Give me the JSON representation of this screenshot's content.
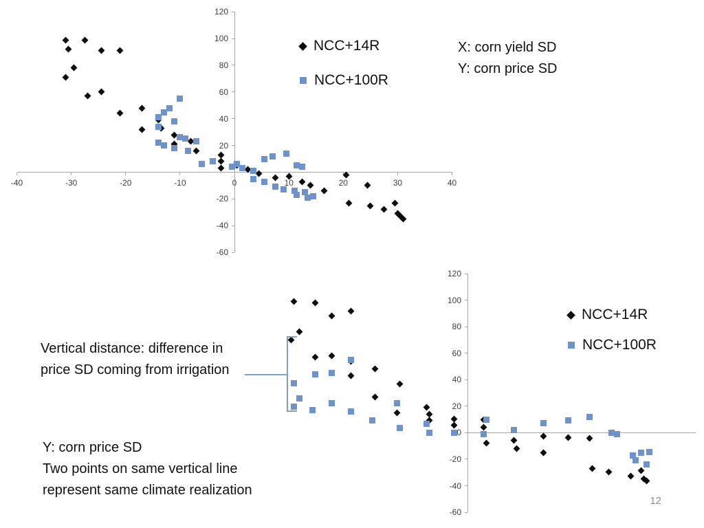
{
  "page": {
    "page_number": "12"
  },
  "colors": {
    "series_ncc14r": "#0d0d0d",
    "series_ncc100r": "#6e92ca",
    "axis": "#a6a6a6",
    "bracket": "#7f9fc4"
  },
  "chart_data": [
    {
      "type": "scatter",
      "position": "top",
      "title": "",
      "xlabel": "",
      "ylabel": "",
      "x_axis": {
        "min": -40,
        "max": 40,
        "ticks": [
          -40,
          -30,
          -20,
          -10,
          0,
          10,
          20,
          30,
          40
        ]
      },
      "y_axis": {
        "min": -60,
        "max": 120,
        "ticks": [
          120,
          100,
          80,
          60,
          40,
          20,
          -20,
          -40,
          -60
        ]
      },
      "grid": false,
      "legend_position": "top-center",
      "annotations": {
        "note": [
          "X: corn yield SD",
          "Y: corn price SD"
        ]
      },
      "series": [
        {
          "name": "NCC+14R",
          "marker": "diamond",
          "color": "#0d0d0d",
          "points": [
            [
              -31,
              99
            ],
            [
              -27.5,
              99
            ],
            [
              -30.5,
              92
            ],
            [
              -24.5,
              91
            ],
            [
              -21,
              91
            ],
            [
              -29.5,
              78
            ],
            [
              -31,
              71
            ],
            [
              -27,
              57
            ],
            [
              -24.5,
              60
            ],
            [
              -21,
              44
            ],
            [
              -17,
              48
            ],
            [
              -17,
              32
            ],
            [
              -14,
              39
            ],
            [
              -13.5,
              33
            ],
            [
              -11,
              28
            ],
            [
              -11,
              21
            ],
            [
              -8,
              23
            ],
            [
              -7,
              16
            ],
            [
              -2.5,
              13
            ],
            [
              -2.5,
              8
            ],
            [
              -2.5,
              3
            ],
            [
              0.5,
              5
            ],
            [
              2.5,
              2
            ],
            [
              4.5,
              -1
            ],
            [
              7.5,
              -4
            ],
            [
              10,
              -3
            ],
            [
              12.5,
              -7
            ],
            [
              14,
              -10
            ],
            [
              16.5,
              -14
            ],
            [
              20.5,
              -2
            ],
            [
              21,
              -23
            ],
            [
              24.5,
              -10
            ],
            [
              25,
              -25
            ],
            [
              27.5,
              -28
            ],
            [
              29.5,
              -23
            ],
            [
              30,
              -31
            ],
            [
              30.5,
              -33
            ],
            [
              31,
              -35
            ]
          ]
        },
        {
          "name": "NCC+100R",
          "marker": "square",
          "color": "#6e92ca",
          "points": [
            [
              -10,
              55
            ],
            [
              -12,
              48
            ],
            [
              -13,
              45
            ],
            [
              -14,
              41
            ],
            [
              -11,
              38
            ],
            [
              -14,
              34
            ],
            [
              -10,
              26
            ],
            [
              -14,
              22
            ],
            [
              -13,
              20
            ],
            [
              -11,
              18
            ],
            [
              -9,
              25
            ],
            [
              -7,
              23
            ],
            [
              -8.5,
              16
            ],
            [
              -6,
              6
            ],
            [
              -4,
              8
            ],
            [
              -0.5,
              4
            ],
            [
              0.5,
              6
            ],
            [
              1.5,
              3
            ],
            [
              3.5,
              1
            ],
            [
              5.5,
              10
            ],
            [
              7,
              12
            ],
            [
              9.5,
              14
            ],
            [
              11.5,
              5
            ],
            [
              12.5,
              4
            ],
            [
              3.5,
              -5
            ],
            [
              5.5,
              -7
            ],
            [
              7.5,
              -11
            ],
            [
              9,
              -13
            ],
            [
              11,
              -14
            ],
            [
              11.5,
              -17
            ],
            [
              13,
              -15
            ],
            [
              13.5,
              -19
            ],
            [
              14.5,
              -18
            ]
          ]
        }
      ]
    },
    {
      "type": "scatter",
      "position": "bottom-right",
      "title": "",
      "xlabel": "",
      "ylabel": "",
      "x_axis": {
        "min": -40,
        "max": 42,
        "ticks": []
      },
      "y_axis": {
        "min": -60,
        "max": 120,
        "ticks": [
          120,
          100,
          80,
          60,
          40,
          20,
          0,
          -20,
          -40,
          -60
        ]
      },
      "grid": false,
      "legend_position": "right",
      "annotations": {
        "left_note": "Vertical distance: difference in price SD coming from irrigation",
        "bottom_note": [
          "Y: corn price SD",
          "Two points on same vertical line",
          "represent same climate realization"
        ]
      },
      "series": [
        {
          "name": "NCC+14R",
          "marker": "diamond",
          "color": "#0d0d0d",
          "points": [
            [
              -32,
              99
            ],
            [
              -28,
              98
            ],
            [
              -25,
              88
            ],
            [
              -21.5,
              92
            ],
            [
              -31,
              76
            ],
            [
              -32.5,
              70
            ],
            [
              -28,
              57
            ],
            [
              -25,
              58
            ],
            [
              -21.5,
              54
            ],
            [
              -17,
              48
            ],
            [
              -21.5,
              43
            ],
            [
              -12.5,
              37
            ],
            [
              -17,
              27
            ],
            [
              -13,
              15
            ],
            [
              -7.5,
              19
            ],
            [
              -7,
              14
            ],
            [
              -7,
              9.5
            ],
            [
              -2.5,
              10.5
            ],
            [
              -2.5,
              5.5
            ],
            [
              3,
              10
            ],
            [
              3,
              4
            ],
            [
              3.5,
              -8
            ],
            [
              8.5,
              -5.5
            ],
            [
              9,
              -12
            ],
            [
              14,
              -2.5
            ],
            [
              14,
              -15
            ],
            [
              18.5,
              -3.5
            ],
            [
              22.5,
              -4
            ],
            [
              23,
              -27
            ],
            [
              26,
              -29.5
            ],
            [
              30,
              -32.5
            ],
            [
              32,
              -28.5
            ],
            [
              32.5,
              -35
            ],
            [
              33,
              -36.5
            ]
          ]
        },
        {
          "name": "NCC+100R",
          "marker": "square",
          "color": "#6e92ca",
          "points": [
            [
              -21.5,
              55
            ],
            [
              -25,
              45
            ],
            [
              -28,
              44
            ],
            [
              -32,
              37.5
            ],
            [
              -31,
              26
            ],
            [
              -32,
              19.5
            ],
            [
              -28.5,
              17
            ],
            [
              -25,
              22
            ],
            [
              -21.5,
              16
            ],
            [
              -17.5,
              9.5
            ],
            [
              -13,
              22
            ],
            [
              -12.5,
              3.5
            ],
            [
              -7.5,
              6.5
            ],
            [
              -7,
              0
            ],
            [
              -2.5,
              0
            ],
            [
              3.5,
              10
            ],
            [
              3,
              -1
            ],
            [
              8.5,
              2
            ],
            [
              14,
              7
            ],
            [
              18.5,
              9.5
            ],
            [
              22.5,
              12
            ],
            [
              26.5,
              0
            ],
            [
              27.5,
              -1
            ],
            [
              30.5,
              -17
            ],
            [
              32,
              -15
            ],
            [
              33.5,
              -14.5
            ],
            [
              31,
              -21
            ],
            [
              33,
              -24
            ]
          ]
        }
      ]
    }
  ]
}
